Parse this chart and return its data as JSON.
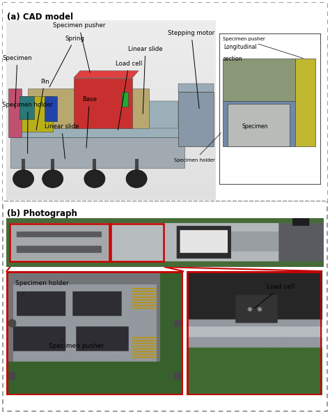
{
  "title_a": "(a) CAD model",
  "title_b": "(b) Photograph",
  "bg_color": "#ffffff",
  "fig_width": 4.74,
  "fig_height": 5.94,
  "inset_box": {
    "label": "Longitudinal\nsection",
    "specimen_pusher_label": "Specimen pusher",
    "specimen_holder_label": "Specimen holder",
    "specimen_label": "Specimen",
    "colors": {
      "border": "#555555",
      "bg": "#ffffff",
      "holder_top": "#8a9878",
      "holder_bottom": "#7088a8",
      "specimen": "#b0b8b0",
      "pusher": "#c8b840"
    }
  },
  "cad_labels": [
    {
      "text": "Specimen pusher",
      "ha": "left"
    },
    {
      "text": "Spring",
      "ha": "left"
    },
    {
      "text": "Specimen",
      "ha": "left"
    },
    {
      "text": "Pin",
      "ha": "left"
    },
    {
      "text": "Specimen holder",
      "ha": "left"
    },
    {
      "text": "Linear slide",
      "ha": "left"
    },
    {
      "text": "Base",
      "ha": "left"
    },
    {
      "text": "Load cell",
      "ha": "left"
    },
    {
      "text": "Linear slide",
      "ha": "left"
    },
    {
      "text": "Stepping motor",
      "ha": "left"
    }
  ],
  "photo_b_labels": [
    {
      "text": "Specimen holder",
      "color": "#000000"
    },
    {
      "text": "Specimen pusher",
      "color": "#000000"
    },
    {
      "text": "Load cell",
      "color": "#000000"
    }
  ],
  "colors": {
    "dashed_border": "#888888",
    "divider": "#888888",
    "red_box": "#cc0000",
    "cad_base": "#9aafb8",
    "cad_rail": "#a0afb8",
    "cad_slide_tan": "#b8a870",
    "cad_red": "#cc3333",
    "cad_yellow": "#c0b020",
    "cad_pink": "#cc5577",
    "cad_teal": "#2a7070",
    "cad_blue": "#3355aa",
    "cad_green": "#2a9a44",
    "cad_motor": "#8898a8",
    "cad_foot": "#222222",
    "photo_bg": "#3a6040",
    "photo_metal": "#a8aeb0",
    "photo_dark": "#2a2a2a",
    "photo_green_bg": "#4a7040"
  }
}
